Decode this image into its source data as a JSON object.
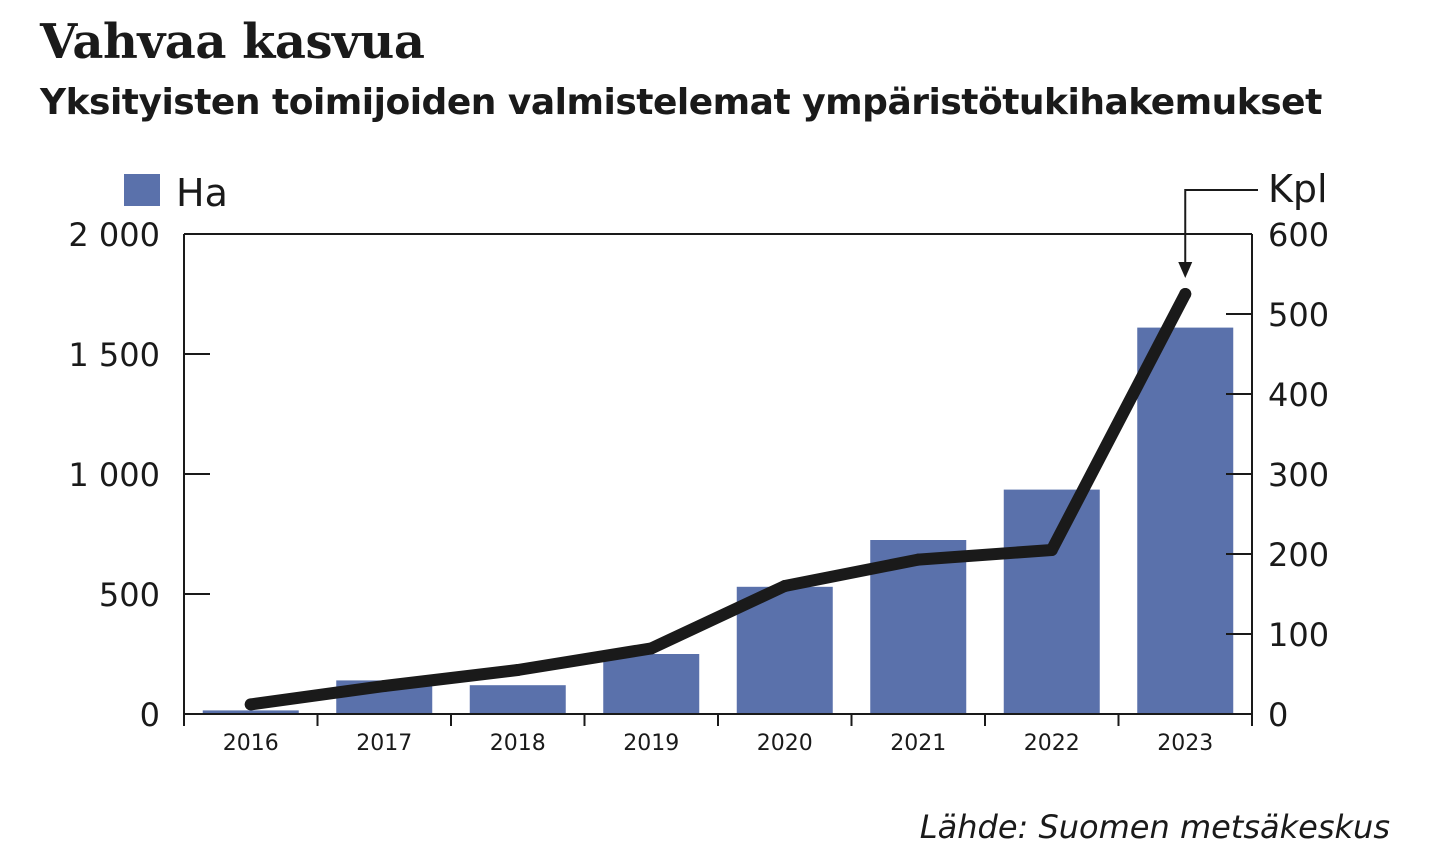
{
  "title": "Vahvaa kasvua",
  "subtitle": "Yksityisten toimijoiden valmistelemat ympäristötukihakemukset",
  "source": "Lähde: Suomen metsäkeskus",
  "colors": {
    "bar": "#5a71ab",
    "line": "#1a1a1a",
    "axis": "#1a1a1a"
  },
  "chart_data": {
    "type": "bar",
    "title": "Vahvaa kasvua",
    "subtitle": "Yksityisten toimijoiden valmistelemat ympäristötukihakemukset",
    "categories": [
      "2016",
      "2017",
      "2018",
      "2019",
      "2020",
      "2021",
      "2022",
      "2023"
    ],
    "series": [
      {
        "name": "Ha",
        "type": "bar",
        "axis": "left",
        "values": [
          15,
          140,
          120,
          250,
          530,
          725,
          935,
          1610
        ]
      },
      {
        "type": "line",
        "axis": "right",
        "values": [
          12,
          35,
          55,
          82,
          160,
          193,
          205,
          525
        ]
      }
    ],
    "y_left": {
      "lim": [
        0,
        2000
      ],
      "ticks": [
        0,
        500,
        1000,
        1500,
        2000
      ],
      "tick_labels": [
        "0",
        "500",
        "1 000",
        "1 500",
        "2 000"
      ]
    },
    "y_right": {
      "label": "Kpl",
      "lim": [
        0,
        600
      ],
      "ticks": [
        0,
        100,
        200,
        300,
        400,
        500,
        600
      ],
      "tick_labels": [
        "0",
        "100",
        "200",
        "300",
        "400",
        "500",
        "600"
      ]
    },
    "legend": {
      "entries": [
        "Ha"
      ],
      "position": "top-left"
    },
    "grid": false
  }
}
